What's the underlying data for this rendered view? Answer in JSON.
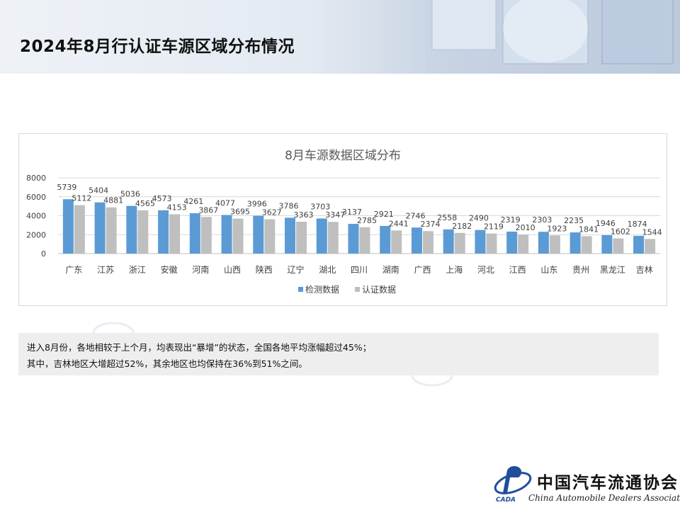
{
  "page": {
    "title": "2024年8月行认证车源区域分布情况"
  },
  "note": {
    "line1": "进入8月份，各地相较于上个月，均表现出“暴增”的状态，全国各地平均涨幅超过45%；",
    "line2": "其中，吉林地区大增超过52%，其余地区也均保持在36%到51%之间。"
  },
  "logo": {
    "cn_name": "中国汽车流通协会",
    "en_name": "China Automobile Dealers Association",
    "abbr": "CADA"
  },
  "colors": {
    "series_1": "#5b9bd5",
    "series_2": "#bfbfbf",
    "title_text": "#595959",
    "axis_text": "#404040"
  },
  "chart_data": {
    "type": "bar",
    "title": "8月车源数据区域分布",
    "categories": [
      "广东",
      "江苏",
      "浙江",
      "安徽",
      "河南",
      "山西",
      "陕西",
      "辽宁",
      "湖北",
      "四川",
      "湖南",
      "广西",
      "上海",
      "河北",
      "江西",
      "山东",
      "贵州",
      "黑龙江",
      "吉林"
    ],
    "series": [
      {
        "name": "检测数据",
        "values": [
          5739,
          5404,
          5036,
          4573,
          4261,
          4077,
          3996,
          3786,
          3703,
          3137,
          2921,
          2746,
          2558,
          2490,
          2319,
          2303,
          2235,
          1946,
          1874
        ]
      },
      {
        "name": "认证数据",
        "values": [
          5112,
          4881,
          4565,
          4153,
          3867,
          3695,
          3627,
          3363,
          3347,
          2785,
          2441,
          2374,
          2182,
          2119,
          2010,
          1923,
          1841,
          1602,
          1544
        ]
      }
    ],
    "ylim": [
      0,
      8000
    ],
    "yticks": [
      0,
      2000,
      4000,
      6000,
      8000
    ],
    "grid": true,
    "legend": "bottom",
    "data_labels": true
  }
}
